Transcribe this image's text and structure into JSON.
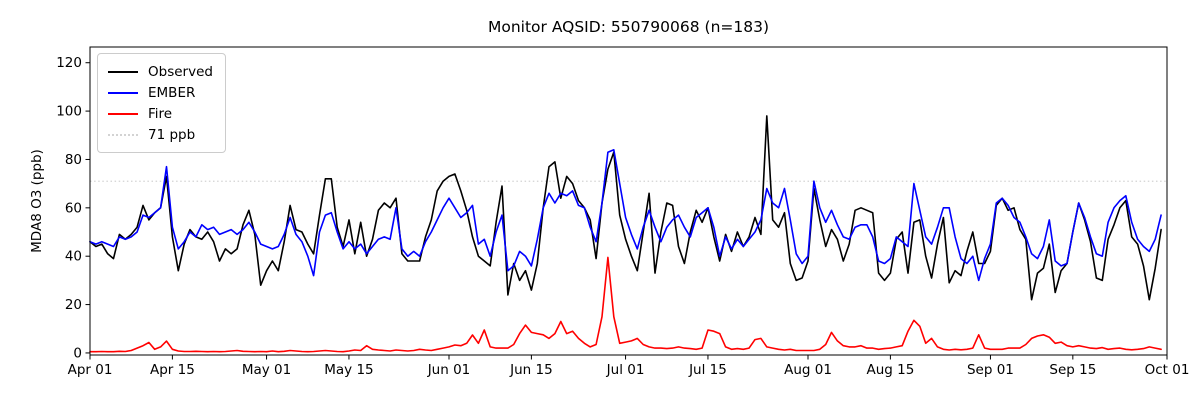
{
  "figure": {
    "background": "#ffffff"
  },
  "chart_data": {
    "type": "line",
    "title": "Monitor AQSID: 550790068 (n=183)",
    "xlabel": "",
    "ylabel": "MDA8 O3 (ppb)",
    "n_points": 183,
    "x_start": "Apr 01",
    "x_end": "Oct 01",
    "x_tick_labels": [
      "Apr 01",
      "Apr 15",
      "May 01",
      "May 15",
      "Jun 01",
      "Jun 15",
      "Jul 01",
      "Jul 15",
      "Aug 01",
      "Aug 15",
      "Sep 01",
      "Sep 15",
      "Oct 01"
    ],
    "x_tick_day_index": [
      0,
      14,
      30,
      44,
      61,
      75,
      91,
      105,
      122,
      136,
      153,
      167,
      183
    ],
    "y_ticks": [
      0,
      20,
      40,
      60,
      80,
      100,
      120
    ],
    "ylim": [
      -0.85,
      126.5
    ],
    "grid": false,
    "legend_position": "upper left",
    "threshold_line": {
      "label": "71 ppb",
      "value": 71,
      "color": "#d3d3d3",
      "dash": "dotted"
    },
    "legend": [
      {
        "label": "Observed",
        "color": "#000000",
        "dash": "solid"
      },
      {
        "label": "EMBER",
        "color": "#0000ff",
        "dash": "solid"
      },
      {
        "label": "Fire",
        "color": "#ff0000",
        "dash": "solid"
      },
      {
        "label": "71 ppb",
        "color": "#d3d3d3",
        "dash": "dotted"
      }
    ],
    "series": [
      {
        "name": "Observed",
        "color": "#000000",
        "values": [
          46,
          44,
          45,
          41,
          39,
          49,
          47,
          49,
          52,
          61,
          55,
          58,
          60,
          73,
          48,
          34,
          45,
          51,
          48,
          47,
          50,
          46,
          38,
          43,
          41,
          43,
          53,
          59,
          49,
          28,
          34,
          38,
          34,
          46,
          61,
          51,
          50,
          45,
          41,
          57,
          72,
          72,
          52,
          44,
          55,
          41,
          54,
          40,
          47,
          59,
          62,
          60,
          64,
          41,
          38,
          38,
          38,
          48,
          55,
          67,
          71,
          73,
          74,
          67,
          59,
          48,
          40,
          38,
          36,
          54,
          69,
          24,
          37,
          30,
          34,
          26,
          37,
          60,
          77,
          79,
          64,
          73,
          70,
          63,
          60,
          55,
          39,
          62,
          76,
          83,
          57,
          47,
          40,
          34,
          50,
          66,
          33,
          50,
          62,
          61,
          44,
          37,
          50,
          59,
          54,
          60,
          48,
          38,
          49,
          42,
          50,
          44,
          48,
          56,
          49,
          98,
          55,
          52,
          58,
          37,
          30,
          31,
          38,
          68,
          55,
          44,
          51,
          47,
          38,
          45,
          59,
          60,
          59,
          58,
          33,
          30,
          33,
          47,
          50,
          33,
          54,
          55,
          40,
          31,
          45,
          56,
          29,
          34,
          32,
          42,
          50,
          37,
          37,
          42,
          61,
          64,
          59,
          60,
          51,
          47,
          22,
          33,
          35,
          45,
          25,
          34,
          37,
          50,
          62,
          55,
          46,
          31,
          30,
          47,
          53,
          60,
          63,
          48,
          45,
          36,
          22,
          35,
          51
        ]
      },
      {
        "name": "EMBER",
        "color": "#0000ff",
        "values": [
          46,
          45,
          46,
          45,
          44,
          48,
          47,
          48,
          50,
          57,
          56,
          58,
          60,
          77,
          52,
          43,
          46,
          50,
          48,
          53,
          51,
          52,
          49,
          50,
          51,
          49,
          51,
          54,
          50,
          45,
          44,
          43,
          44,
          49,
          56,
          49,
          46,
          40,
          32,
          50,
          57,
          58,
          50,
          43,
          46,
          43,
          45,
          41,
          44,
          47,
          48,
          47,
          60,
          43,
          40,
          42,
          40,
          46,
          50,
          55,
          60,
          64,
          60,
          56,
          58,
          61,
          45,
          47,
          40,
          50,
          57,
          34,
          36,
          42,
          40,
          36,
          47,
          60,
          66,
          62,
          66,
          65,
          67,
          61,
          60,
          52,
          46,
          62,
          83,
          84,
          70,
          56,
          49,
          43,
          52,
          59,
          52,
          46,
          52,
          55,
          57,
          52,
          48,
          56,
          58,
          60,
          52,
          40,
          48,
          43,
          47,
          44,
          47,
          50,
          55,
          68,
          62,
          60,
          68,
          55,
          41,
          37,
          40,
          71,
          60,
          54,
          59,
          53,
          48,
          47,
          52,
          53,
          53,
          48,
          38,
          37,
          39,
          48,
          46,
          44,
          70,
          59,
          48,
          45,
          52,
          60,
          60,
          48,
          39,
          37,
          40,
          30,
          39,
          45,
          62,
          64,
          61,
          56,
          54,
          48,
          41,
          39,
          44,
          55,
          38,
          36,
          37,
          50,
          62,
          56,
          48,
          41,
          40,
          54,
          60,
          63,
          65,
          54,
          47,
          44,
          42,
          47,
          57
        ]
      },
      {
        "name": "Fire",
        "color": "#ff0000",
        "values": [
          0.5,
          0.5,
          0.6,
          0.5,
          0.5,
          0.7,
          0.6,
          1,
          2,
          3,
          4.3,
          1.5,
          2.5,
          4.9,
          1.5,
          0.8,
          0.6,
          0.6,
          0.7,
          0.6,
          0.5,
          0.6,
          0.5,
          0.6,
          0.8,
          1,
          0.7,
          0.6,
          0.5,
          0.6,
          0.5,
          0.8,
          0.5,
          0.7,
          1,
          0.8,
          0.6,
          0.5,
          0.6,
          0.8,
          1,
          0.8,
          0.6,
          0.5,
          0.8,
          1.2,
          1,
          3,
          1.5,
          1.2,
          1,
          0.8,
          1.2,
          1,
          0.8,
          1,
          1.5,
          1.2,
          1,
          1.5,
          2,
          2.5,
          3.3,
          3,
          4,
          7.4,
          4,
          9.5,
          2.5,
          2,
          2,
          2,
          3.5,
          8,
          11.5,
          8.5,
          8,
          7.5,
          6,
          8,
          13,
          8,
          9,
          6,
          4,
          2.5,
          3.5,
          15,
          39.5,
          15,
          4,
          4.5,
          5,
          6,
          3.5,
          2.5,
          2,
          2,
          1.8,
          2,
          2.5,
          2,
          1.8,
          1.5,
          2,
          9.5,
          9,
          8,
          2.5,
          1.5,
          1.8,
          1.5,
          2,
          5.5,
          6,
          2.5,
          2,
          1.5,
          1.2,
          1.5,
          1,
          1,
          1,
          1,
          1.5,
          3.5,
          8.5,
          5,
          3,
          2.5,
          2.5,
          3,
          2,
          2,
          1.5,
          1.8,
          2,
          2.5,
          3,
          9,
          13.5,
          11,
          4,
          6,
          2.5,
          1.5,
          1.2,
          1.5,
          1.3,
          1.5,
          2,
          7.5,
          2,
          1.5,
          1.5,
          1.5,
          2,
          2,
          2,
          3.5,
          6,
          7,
          7.5,
          6.5,
          4,
          4.5,
          3,
          2.5,
          3,
          2.5,
          2,
          1.8,
          2.2,
          1.5,
          1.8,
          2,
          1.5,
          1.3,
          1.5,
          1.8,
          2.5,
          2,
          1.5
        ]
      }
    ]
  }
}
